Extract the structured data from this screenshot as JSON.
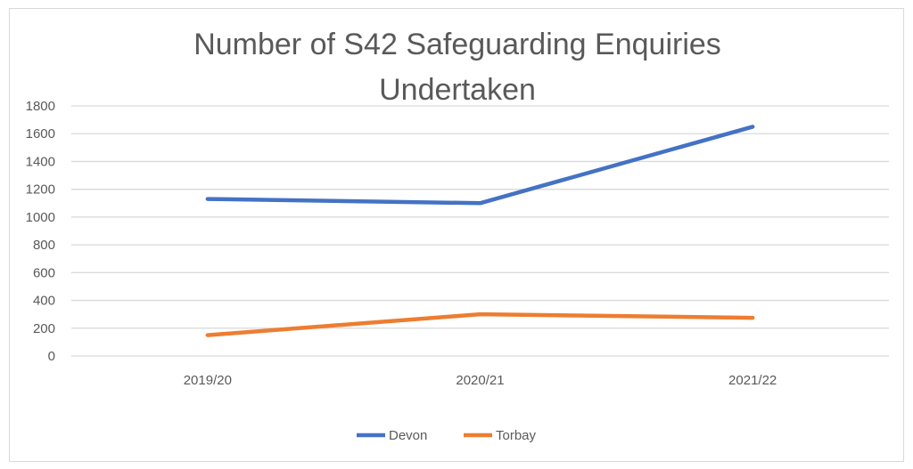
{
  "chart_data": {
    "type": "line",
    "title_lines": [
      "Number of S42 Safeguarding Enquiries",
      "Undertaken"
    ],
    "categories": [
      "2019/20",
      "2020/21",
      "2021/22"
    ],
    "series": [
      {
        "name": "Devon",
        "color": "#4472C4",
        "values": [
          1130,
          1100,
          1650
        ]
      },
      {
        "name": "Torbay",
        "color": "#ED7D31",
        "values": [
          150,
          300,
          275
        ]
      }
    ],
    "ylim": [
      0,
      1800
    ],
    "yticks": [
      0,
      200,
      400,
      600,
      800,
      1000,
      1200,
      1400,
      1600,
      1800
    ],
    "grid": true,
    "legend_position": "bottom",
    "xlabel": "",
    "ylabel": ""
  }
}
